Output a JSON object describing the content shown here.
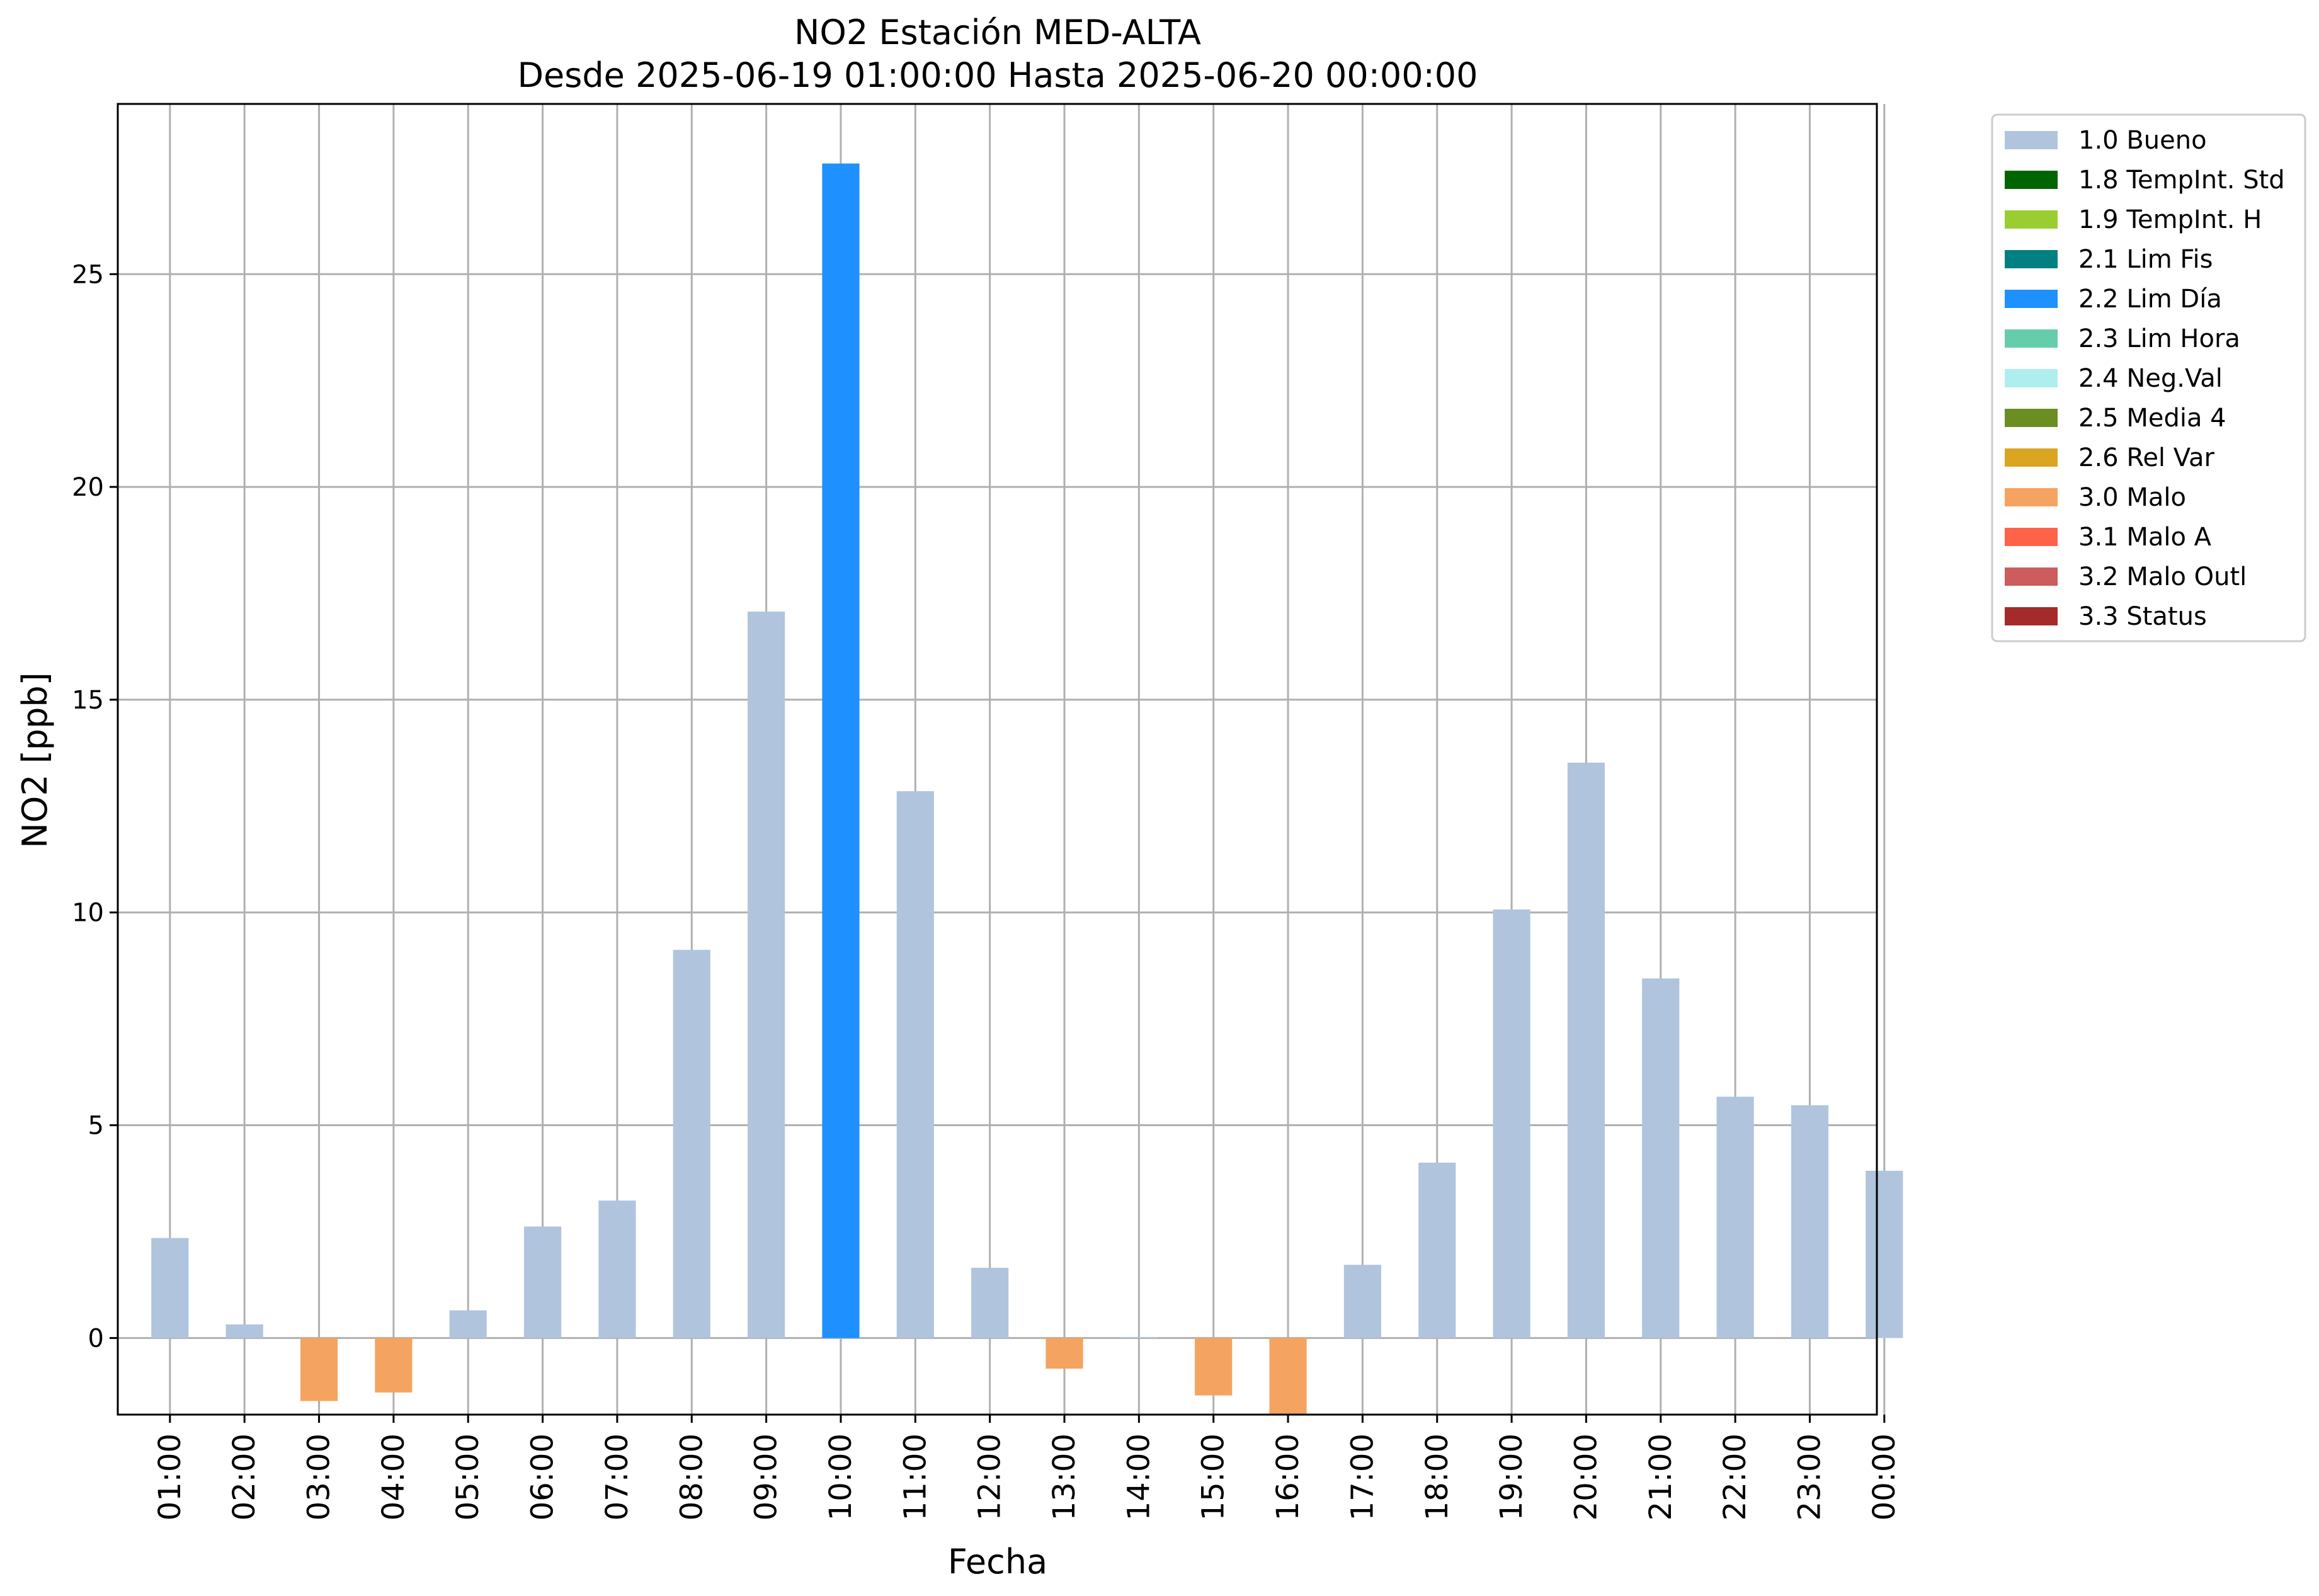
{
  "chart_data": {
    "type": "bar",
    "title": "NO2 Estación MED-ALTA",
    "subtitle": "Desde 2025-06-19 01:00:00 Hasta 2025-06-20 00:00:00",
    "xlabel": "Fecha",
    "ylabel": "NO2 [ppb]",
    "ylim": [
      -1.8,
      29.0
    ],
    "yticks": [
      0,
      5,
      10,
      15,
      20,
      25
    ],
    "grid": true,
    "legend_position": "outside-right-top",
    "categories": [
      "01:00",
      "02:00",
      "03:00",
      "04:00",
      "05:00",
      "06:00",
      "07:00",
      "08:00",
      "09:00",
      "10:00",
      "11:00",
      "12:00",
      "13:00",
      "14:00",
      "15:00",
      "16:00",
      "17:00",
      "18:00",
      "19:00",
      "20:00",
      "21:00",
      "22:00",
      "23:00",
      "00:00"
    ],
    "values": [
      2.35,
      0.32,
      -1.48,
      -1.28,
      0.65,
      2.62,
      3.23,
      9.12,
      17.07,
      27.6,
      12.85,
      1.65,
      -0.72,
      0.02,
      -1.35,
      -1.85,
      1.72,
      4.12,
      10.07,
      13.52,
      8.45,
      5.67,
      5.47,
      3.93
    ],
    "flags": [
      "1.0 Bueno",
      "1.0 Bueno",
      "3.0 Malo",
      "3.0 Malo",
      "1.0 Bueno",
      "1.0 Bueno",
      "1.0 Bueno",
      "1.0 Bueno",
      "1.0 Bueno",
      "2.2 Lim Día",
      "1.0 Bueno",
      "1.0 Bueno",
      "3.0 Malo",
      "1.0 Bueno",
      "3.0 Malo",
      "3.0 Malo",
      "1.0 Bueno",
      "1.0 Bueno",
      "1.0 Bueno",
      "1.0 Bueno",
      "1.0 Bueno",
      "1.0 Bueno",
      "1.0 Bueno",
      "1.0 Bueno"
    ],
    "legend": [
      {
        "label": "1.0 Bueno",
        "color": "#b0c4de"
      },
      {
        "label": "1.8 TempInt. Std",
        "color": "#006400"
      },
      {
        "label": "1.9 TempInt. H",
        "color": "#9acd32"
      },
      {
        "label": "2.1 Lim Fis",
        "color": "#008080"
      },
      {
        "label": "2.2 Lim Día",
        "color": "#1e90ff"
      },
      {
        "label": "2.3 Lim Hora",
        "color": "#66cdaa"
      },
      {
        "label": "2.4 Neg.Val",
        "color": "#afeeee"
      },
      {
        "label": "2.5 Media 4",
        "color": "#6b8e23"
      },
      {
        "label": "2.6 Rel Var",
        "color": "#daa520"
      },
      {
        "label": "3.0 Malo",
        "color": "#f4a460"
      },
      {
        "label": "3.1 Malo A",
        "color": "#ff6347"
      },
      {
        "label": "3.2 Malo Outl",
        "color": "#cd5c5c"
      },
      {
        "label": "3.3 Status",
        "color": "#a52a2a"
      }
    ]
  }
}
